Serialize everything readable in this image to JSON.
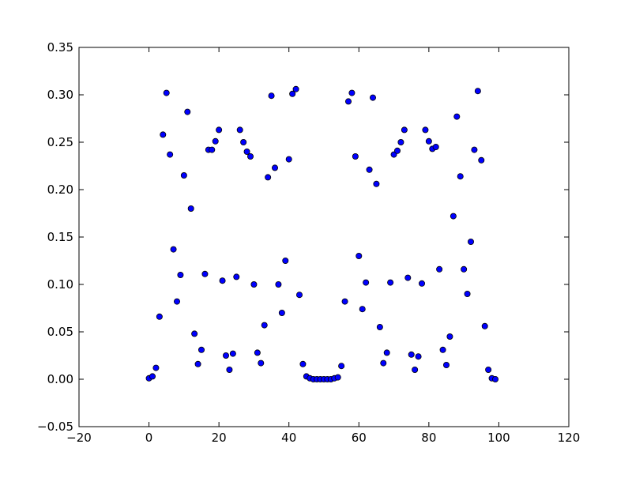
{
  "chart_data": {
    "type": "scatter",
    "title": "",
    "xlabel": "",
    "ylabel": "",
    "xlim": [
      -20,
      120
    ],
    "ylim": [
      -0.05,
      0.35
    ],
    "grid": false,
    "x_ticks": [
      -20,
      0,
      20,
      40,
      60,
      80,
      100,
      120
    ],
    "y_ticks": [
      -0.05,
      0.0,
      0.05,
      0.1,
      0.15,
      0.2,
      0.25,
      0.3,
      0.35
    ],
    "x_tick_labels": [
      "−20",
      "0",
      "20",
      "40",
      "60",
      "80",
      "100",
      "120"
    ],
    "y_tick_labels": [
      "−0.05",
      "0.00",
      "0.05",
      "0.10",
      "0.15",
      "0.20",
      "0.25",
      "0.30",
      "0.35"
    ],
    "marker_color": "#0000ff",
    "marker_edge": "#000000",
    "series": [
      {
        "x": [
          0,
          1,
          2,
          3,
          4,
          5,
          6,
          7,
          8,
          9,
          10,
          11,
          12,
          13,
          14,
          15,
          16,
          17,
          18,
          19,
          20,
          21,
          22,
          23,
          24,
          25,
          26,
          27,
          28,
          29,
          30,
          31,
          32,
          33,
          34,
          35,
          36,
          37,
          38,
          39,
          40,
          41,
          42,
          43,
          44,
          45,
          46,
          47,
          48,
          49,
          50,
          51,
          52,
          53,
          54,
          55,
          56,
          57,
          58,
          59,
          60,
          61,
          62,
          63,
          64,
          65,
          66,
          67,
          68,
          69,
          70,
          71,
          72,
          73,
          74,
          75,
          76,
          77,
          78,
          79,
          80,
          81,
          82,
          83,
          84,
          85,
          86,
          87,
          88,
          89,
          90,
          91,
          92,
          93,
          94,
          95,
          96,
          97,
          98,
          99
        ],
        "y": [
          0.001,
          0.003,
          0.012,
          0.066,
          0.258,
          0.302,
          0.237,
          0.137,
          0.082,
          0.11,
          0.215,
          0.282,
          0.18,
          0.048,
          0.016,
          0.031,
          0.111,
          0.242,
          0.242,
          0.251,
          0.263,
          0.104,
          0.025,
          0.01,
          0.027,
          0.108,
          0.263,
          0.25,
          0.24,
          0.235,
          0.1,
          0.028,
          0.017,
          0.057,
          0.213,
          0.299,
          0.223,
          0.1,
          0.07,
          0.125,
          0.232,
          0.301,
          0.306,
          0.089,
          0.016,
          0.003,
          0.001,
          0.0,
          0.0,
          0.0,
          0.0,
          0.0,
          0.0,
          0.001,
          0.002,
          0.014,
          0.082,
          0.293,
          0.302,
          0.235,
          0.13,
          0.074,
          0.102,
          0.221,
          0.297,
          0.206,
          0.055,
          0.017,
          0.028,
          0.102,
          0.237,
          0.241,
          0.25,
          0.263,
          0.107,
          0.026,
          0.01,
          0.024,
          0.101,
          0.263,
          0.251,
          0.243,
          0.245,
          0.116,
          0.031,
          0.015,
          0.045,
          0.172,
          0.277,
          0.214,
          0.116,
          0.09,
          0.145,
          0.242,
          0.304,
          0.231,
          0.056,
          0.01,
          0.001,
          0.0
        ]
      }
    ]
  }
}
